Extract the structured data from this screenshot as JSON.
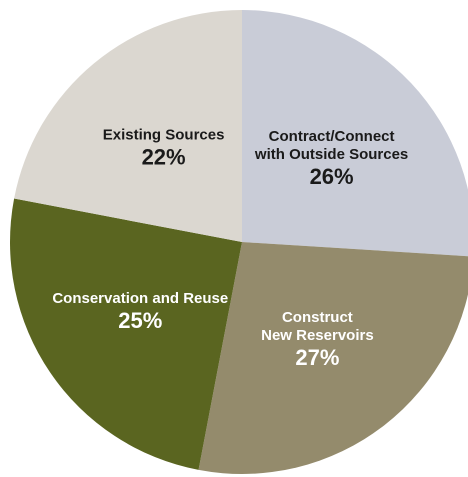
{
  "chart_data": {
    "type": "pie",
    "title": "",
    "slices": [
      {
        "label_lines": [
          "Contract/Connect",
          "with Outside Sources"
        ],
        "value": 26,
        "value_label": "26%",
        "color": "#c9ccd7",
        "text_color": "#1a1a1a"
      },
      {
        "label_lines": [
          "Construct",
          "New Reservoirs"
        ],
        "value": 27,
        "value_label": "27%",
        "color": "#948b6c",
        "text_color": "#ffffff"
      },
      {
        "label_lines": [
          "Conservation and Reuse"
        ],
        "value": 25,
        "value_label": "25%",
        "color": "#5a6520",
        "text_color": "#ffffff"
      },
      {
        "label_lines": [
          "Existing Sources"
        ],
        "value": 22,
        "value_label": "22%",
        "color": "#dbd7d0",
        "text_color": "#1a1a1a"
      }
    ]
  }
}
